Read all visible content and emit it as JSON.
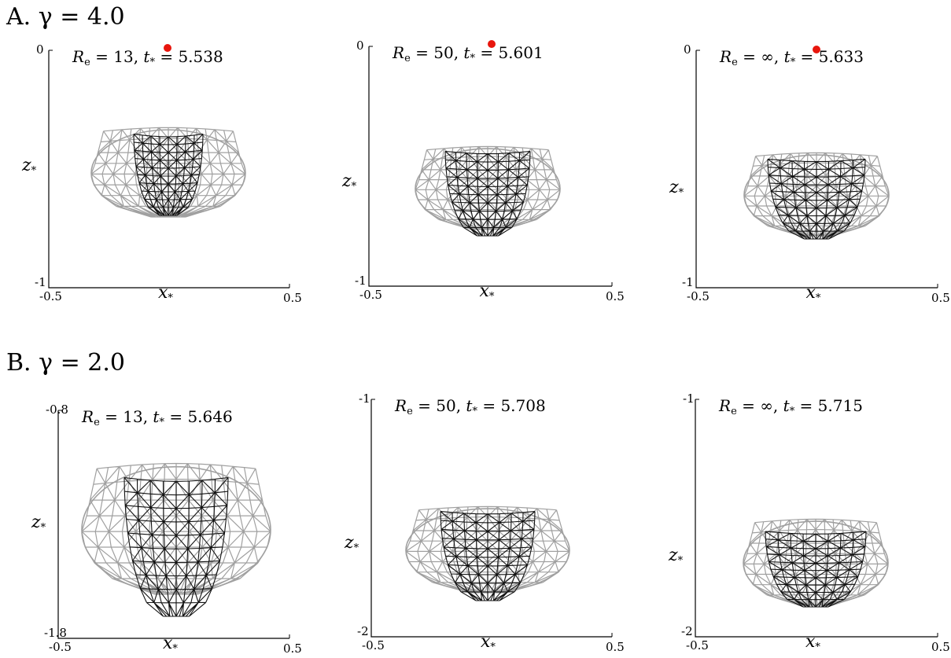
{
  "figure": {
    "rows": [
      {
        "label": "A. γ = 4.0",
        "panels": [
          {
            "title": "Re = 13, t* = 5.538",
            "re": "13",
            "t": "5.538",
            "y_top": "0",
            "y_bottom": "-1",
            "x_left": "-0.5",
            "x_right": "0.5",
            "xlabel": "x*",
            "ylabel": "z*",
            "marker": true
          },
          {
            "title": "Re = 50, t* = 5.601",
            "re": "50",
            "t": "5.601",
            "y_top": "0",
            "y_bottom": "-1",
            "x_left": "-0.5",
            "x_right": "0.5",
            "xlabel": "x*",
            "ylabel": "z*",
            "marker": true
          },
          {
            "title": "Re = ∞, t* = 5.633",
            "re": "∞",
            "t": "5.633",
            "y_top": "0",
            "y_bottom": "-1",
            "x_left": "-0.5",
            "x_right": "0.5",
            "xlabel": "x*",
            "ylabel": "z*",
            "marker": true
          }
        ]
      },
      {
        "label": "B. γ = 2.0",
        "panels": [
          {
            "title": "Re = 13, t* = 5.646",
            "re": "13",
            "t": "5.646",
            "y_top": "-0.8",
            "y_bottom": "-1.8",
            "x_left": "-0.5",
            "x_right": "0.5",
            "xlabel": "x*",
            "ylabel": "z*",
            "marker": false
          },
          {
            "title": "Re = 50, t* = 5.708",
            "re": "50",
            "t": "5.708",
            "y_top": "-1",
            "y_bottom": "-2",
            "x_left": "-0.5",
            "x_right": "0.5",
            "xlabel": "x*",
            "ylabel": "z*",
            "marker": false
          },
          {
            "title": "Re = ∞, t* = 5.715",
            "re": "∞",
            "t": "5.715",
            "y_top": "-1",
            "y_bottom": "-2",
            "x_left": "-0.5",
            "x_right": "0.5",
            "xlabel": "x*",
            "ylabel": "z*",
            "marker": false
          }
        ]
      }
    ],
    "colors": {
      "outer_mesh": "#a0a0a0",
      "inner_mesh": "#111111",
      "marker": "#e8160d",
      "axis": "#000000"
    }
  }
}
